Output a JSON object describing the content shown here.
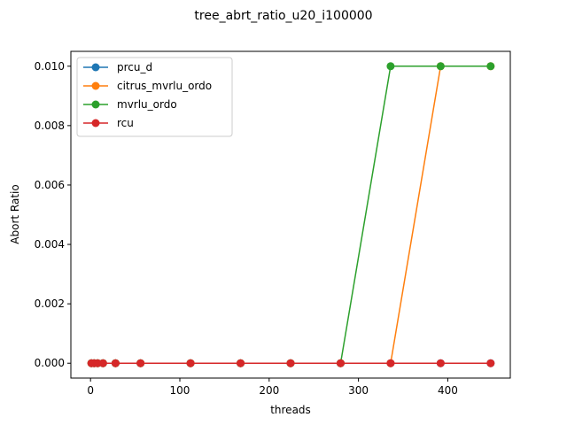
{
  "chart_data": {
    "type": "line",
    "title": "tree_abrt_ratio_u20_i100000",
    "xlabel": "threads",
    "ylabel": "Abort Ratio",
    "xlim": [
      -22,
      470
    ],
    "ylim": [
      -0.0005,
      0.0105
    ],
    "xticks": [
      0,
      100,
      200,
      300,
      400
    ],
    "xtick_labels": [
      "0",
      "100",
      "200",
      "300",
      "400"
    ],
    "yticks": [
      0.0,
      0.002,
      0.004,
      0.006,
      0.008,
      0.01
    ],
    "ytick_labels": [
      "0.000",
      "0.002",
      "0.004",
      "0.006",
      "0.008",
      "0.010"
    ],
    "grid": false,
    "legend_position": "top-left",
    "x": [
      1,
      4,
      8,
      14,
      28,
      56,
      112,
      168,
      224,
      280,
      336,
      392,
      448
    ],
    "series": [
      {
        "name": "prcu_d",
        "color": "#1f77b4",
        "values": [
          0,
          0,
          0,
          0,
          0,
          0,
          0,
          0,
          0,
          0,
          0,
          0,
          0
        ]
      },
      {
        "name": "citrus_mvrlu_ordo",
        "color": "#ff7f0e",
        "values": [
          0,
          0,
          0,
          0,
          0,
          0,
          0,
          0,
          0,
          0,
          0,
          0.01,
          0.01
        ]
      },
      {
        "name": "mvrlu_ordo",
        "color": "#2ca02c",
        "values": [
          0,
          0,
          0,
          0,
          0,
          0,
          0,
          0,
          0,
          0,
          0.01,
          0.01,
          0.01
        ]
      },
      {
        "name": "rcu",
        "color": "#d62728",
        "values": [
          0,
          0,
          0,
          0,
          0,
          0,
          0,
          0,
          0,
          0,
          0,
          0,
          0
        ]
      }
    ]
  }
}
